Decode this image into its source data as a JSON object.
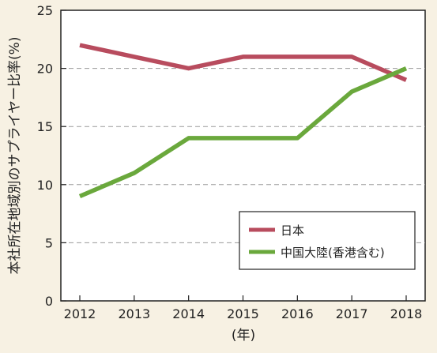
{
  "chart_data": {
    "type": "line",
    "x": [
      "2012",
      "2013",
      "2014",
      "2015",
      "2016",
      "2017",
      "2018"
    ],
    "series": [
      {
        "name": "日本",
        "color": "#b84c5e",
        "values": [
          22,
          21,
          20,
          21,
          21,
          21,
          19
        ]
      },
      {
        "name": "中国大陸(香港含む)",
        "color": "#6aa83c",
        "values": [
          9,
          11,
          14,
          14,
          14,
          18,
          20
        ]
      }
    ],
    "ylabel": "本社所在地域別のサプライヤー比率(%)",
    "xlabel": "(年)",
    "ylim": [
      0,
      25
    ],
    "yticks": [
      0,
      5,
      10,
      15,
      20,
      25
    ],
    "grid": "horizontal dashed",
    "legend_position": "bottom-right"
  }
}
